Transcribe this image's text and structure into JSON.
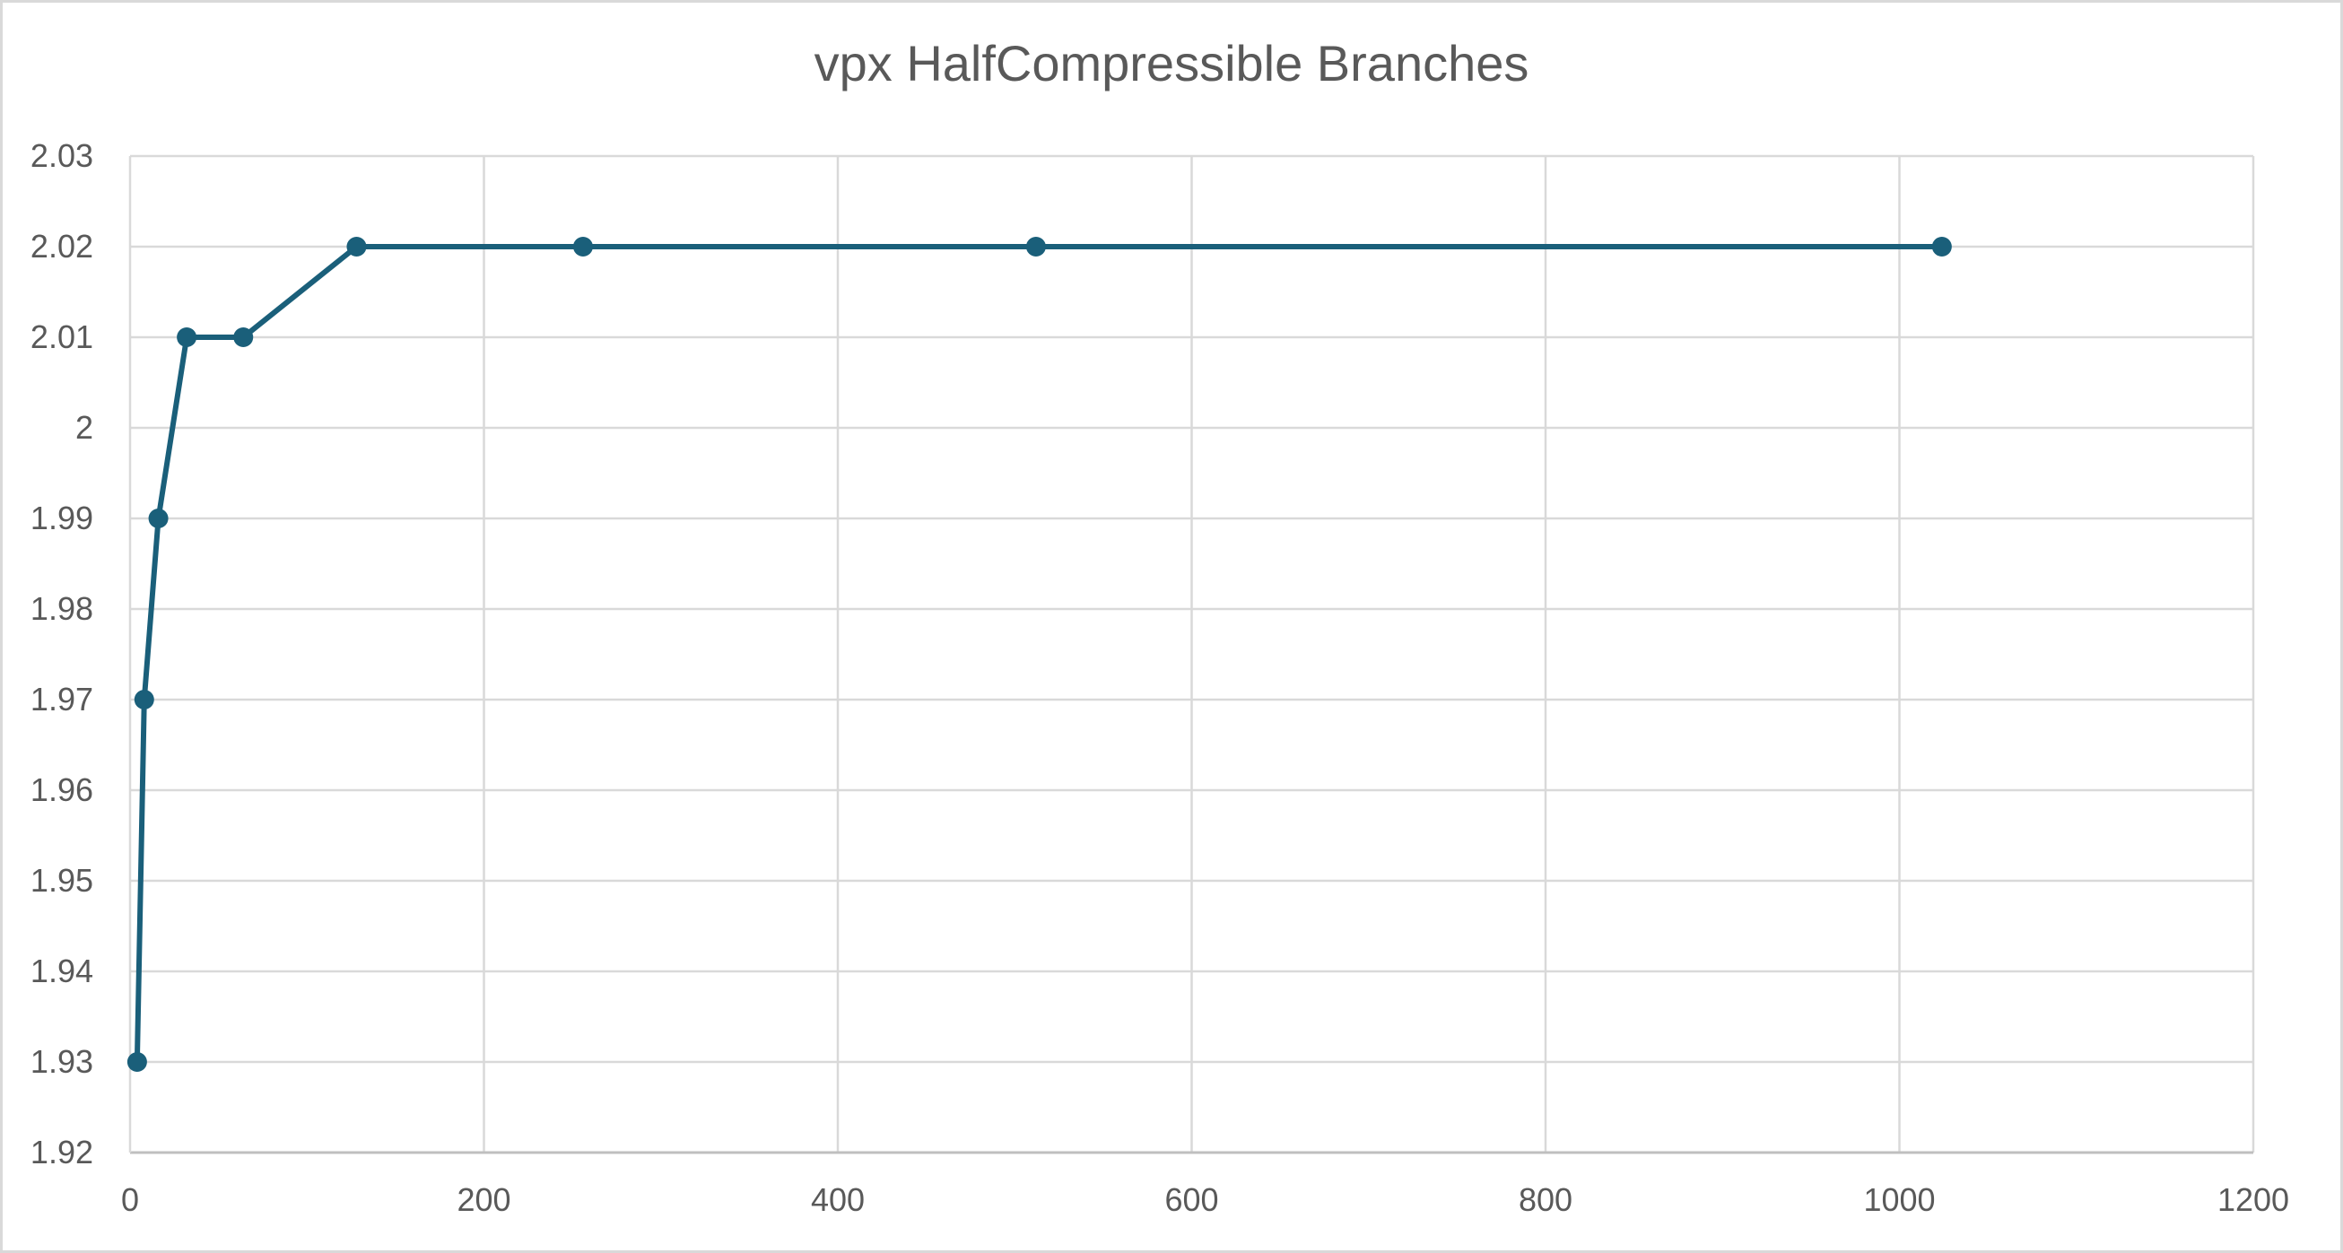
{
  "chart_data": {
    "type": "scatter",
    "title": "vpx HalfCompressible Branches",
    "xlabel": "",
    "ylabel": "",
    "xlim": [
      0,
      1200
    ],
    "ylim": [
      1.92,
      2.03
    ],
    "x_ticks": [
      "0",
      "200",
      "400",
      "600",
      "800",
      "1000",
      "1200"
    ],
    "y_ticks": [
      "1.92",
      "1.93",
      "1.94",
      "1.95",
      "1.96",
      "1.97",
      "1.98",
      "1.99",
      "2",
      "2.01",
      "2.02",
      "2.03"
    ],
    "grid": true,
    "legend": "none",
    "series": [
      {
        "x": [
          4,
          8,
          16,
          32,
          64,
          128,
          256,
          512,
          1024
        ],
        "y": [
          1.93,
          1.97,
          1.99,
          2.01,
          2.01,
          2.02,
          2.02,
          2.02,
          2.02
        ],
        "color": "#1a5f7a",
        "style": "line-with-markers"
      }
    ]
  }
}
